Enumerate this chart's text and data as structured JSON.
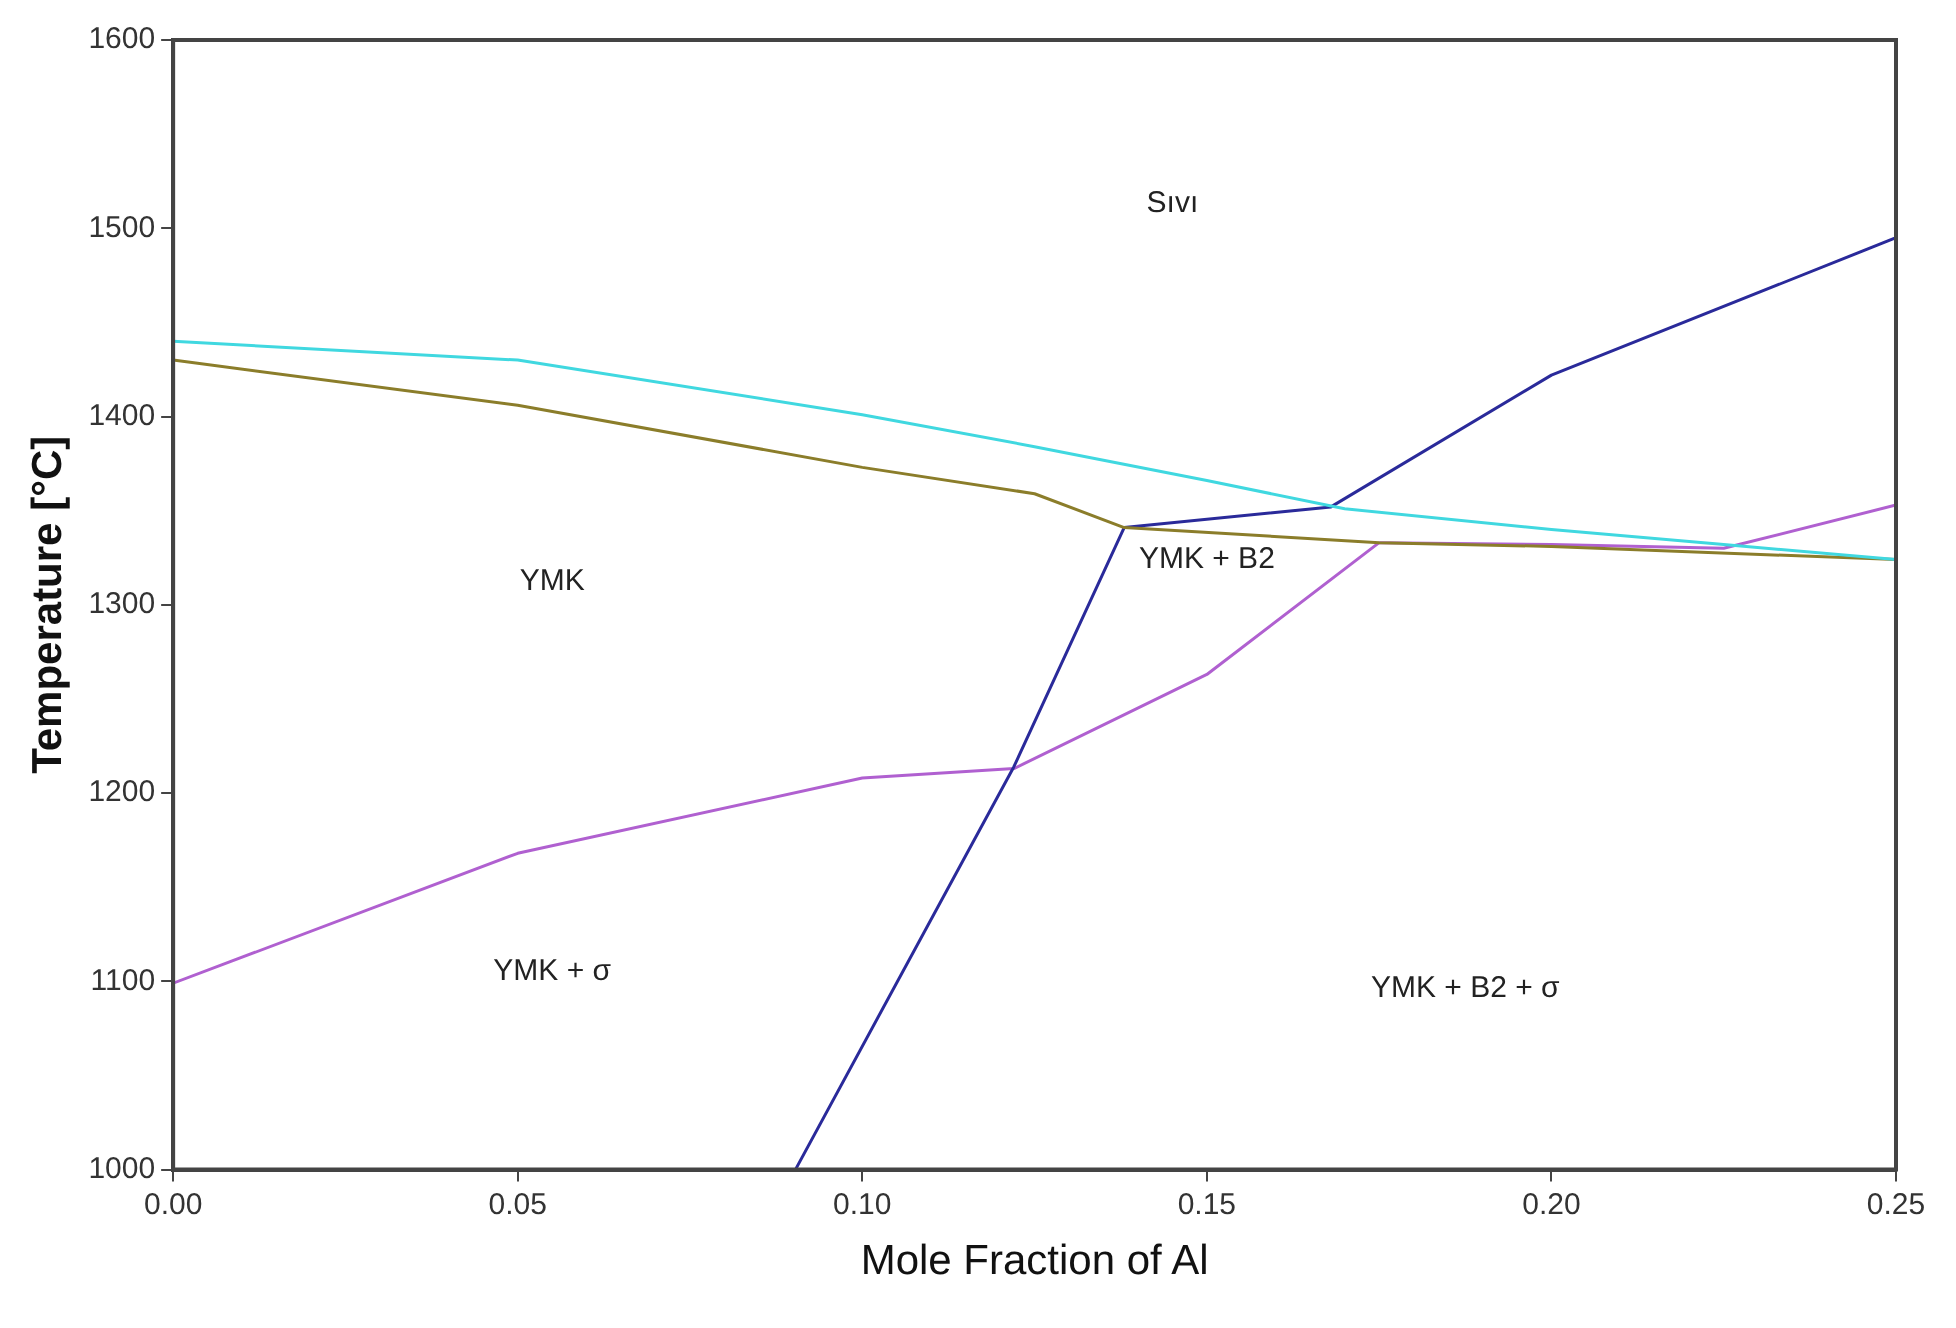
{
  "chart_data": {
    "type": "line",
    "xlabel": "Mole Fraction of Al",
    "ylabel": "Temperature [°C]",
    "xlim": [
      0,
      0.25
    ],
    "xticks": [
      {
        "value": 0,
        "label": "0.00"
      },
      {
        "value": 0.05,
        "label": "0.05"
      },
      {
        "value": 0.1,
        "label": "0.10"
      },
      {
        "value": 0.15,
        "label": "0.15"
      },
      {
        "value": 0.2,
        "label": "0.20"
      },
      {
        "value": 0.25,
        "label": "0.25"
      }
    ],
    "ylim": [
      1000,
      1600
    ],
    "yticks": [
      1000,
      1100,
      1200,
      1300,
      1400,
      1500,
      1600
    ],
    "grid": false,
    "legend": false,
    "marker": "none",
    "line_style": "solid",
    "series": [
      {
        "color": "#40d8e0",
        "x": [
          0,
          0.05,
          0.1,
          0.125,
          0.15,
          0.17,
          0.2,
          0.225,
          0.25
        ],
        "values": [
          1440,
          1430,
          1401,
          1384,
          1366,
          1351,
          1340,
          1332,
          1324
        ]
      },
      {
        "color": "#8b7d2a",
        "x": [
          0,
          0.05,
          0.1,
          0.125,
          0.138,
          0.175,
          0.2,
          0.25
        ],
        "values": [
          1430,
          1406,
          1373,
          1359,
          1341,
          1333,
          1331,
          1324
        ]
      },
      {
        "color": "#2a2a9a",
        "x": [
          0.0903,
          0.122,
          0.138,
          0.168,
          0.2,
          0.25
        ],
        "values": [
          1000,
          1214,
          1341,
          1352,
          1422,
          1495
        ]
      },
      {
        "color": "#b060d0",
        "x": [
          0,
          0.05,
          0.1,
          0.122,
          0.15,
          0.175
        ],
        "values": [
          1099,
          1168,
          1208,
          1213,
          1263,
          1333
        ]
      },
      {
        "color": "#b060d0",
        "x": [
          0.175,
          0.2,
          0.225,
          0.25
        ],
        "values": [
          1333,
          1332,
          1330,
          1353
        ]
      }
    ],
    "annotations": [
      "Sıvı",
      "YMK",
      "YMK + B2",
      "YMK + σ",
      "YMK + B2 + σ"
    ]
  }
}
